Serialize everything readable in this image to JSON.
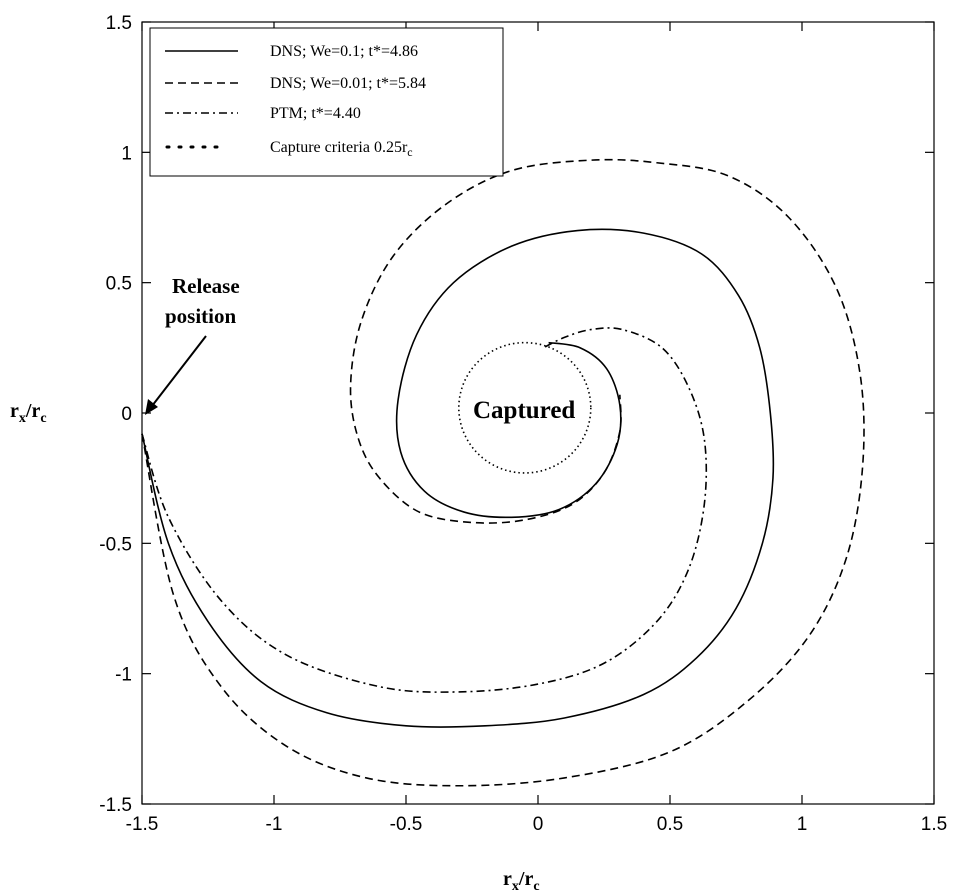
{
  "chart_data": {
    "type": "line",
    "xlabel_main": "r",
    "xlabel_sub": "x",
    "xlabel_denom_main": "r",
    "xlabel_denom_sub": "c",
    "ylabel_main": "r",
    "ylabel_sub": "x",
    "ylabel_denom_main": "r",
    "ylabel_denom_sub": "c",
    "xlim": [
      -1.5,
      1.5
    ],
    "ylim": [
      -1.5,
      1.5
    ],
    "xticks": [
      -1.5,
      -1,
      -0.5,
      0,
      0.5,
      1,
      1.5
    ],
    "xtick_labels": [
      "-1.5",
      "-1",
      "-0.5",
      "0",
      "0.5",
      "1",
      "1.5"
    ],
    "yticks": [
      -1.5,
      -1,
      -0.5,
      0,
      0.5,
      1,
      1.5
    ],
    "ytick_labels": [
      "-1.5",
      "-1",
      "-0.5",
      "0",
      "0.5",
      "1",
      "1.5"
    ],
    "grid": false,
    "legend_position": "top-left",
    "legend": [
      {
        "label": "DNS; We=0.1; t*=4.86",
        "style": "solid"
      },
      {
        "label": "DNS; We=0.01; t*=5.84",
        "style": "dashed"
      },
      {
        "label": "PTM; t*=4.40",
        "style": "dashdot"
      },
      {
        "label_main": "Capture criteria 0.25r",
        "label_sub": "c",
        "style": "dotted"
      }
    ],
    "annotations": {
      "release_line1": "Release",
      "release_line2": "position",
      "captured": "Captured"
    },
    "series": [
      {
        "style": "solid",
        "points": [
          [
            -1.5,
            -0.08
          ],
          [
            -1.4,
            -0.5
          ],
          [
            -1.25,
            -0.8
          ],
          [
            -1.05,
            -1.03
          ],
          [
            -0.8,
            -1.15
          ],
          [
            -0.5,
            -1.2
          ],
          [
            -0.2,
            -1.2
          ],
          [
            0.1,
            -1.17
          ],
          [
            0.4,
            -1.08
          ],
          [
            0.6,
            -0.94
          ],
          [
            0.75,
            -0.75
          ],
          [
            0.85,
            -0.5
          ],
          [
            0.89,
            -0.25
          ],
          [
            0.88,
            0.0
          ],
          [
            0.84,
            0.25
          ],
          [
            0.76,
            0.45
          ],
          [
            0.62,
            0.61
          ],
          [
            0.4,
            0.69
          ],
          [
            0.15,
            0.7
          ],
          [
            -0.1,
            0.64
          ],
          [
            -0.32,
            0.5
          ],
          [
            -0.46,
            0.3
          ],
          [
            -0.53,
            0.05
          ],
          [
            -0.52,
            -0.15
          ],
          [
            -0.43,
            -0.3
          ],
          [
            -0.28,
            -0.38
          ],
          [
            -0.1,
            -0.4
          ],
          [
            0.08,
            -0.37
          ],
          [
            0.22,
            -0.27
          ],
          [
            0.3,
            -0.12
          ],
          [
            0.31,
            0.03
          ],
          [
            0.26,
            0.17
          ],
          [
            0.16,
            0.25
          ],
          [
            0.04,
            0.27
          ]
        ]
      },
      {
        "style": "dashed",
        "points": [
          [
            -1.5,
            -0.08
          ],
          [
            -1.38,
            -0.7
          ],
          [
            -1.2,
            -1.05
          ],
          [
            -0.95,
            -1.28
          ],
          [
            -0.65,
            -1.4
          ],
          [
            -0.3,
            -1.43
          ],
          [
            0.1,
            -1.4
          ],
          [
            0.5,
            -1.3
          ],
          [
            0.8,
            -1.1
          ],
          [
            1.03,
            -0.85
          ],
          [
            1.17,
            -0.55
          ],
          [
            1.23,
            -0.2
          ],
          [
            1.22,
            0.15
          ],
          [
            1.13,
            0.48
          ],
          [
            0.95,
            0.75
          ],
          [
            0.72,
            0.91
          ],
          [
            0.45,
            0.96
          ],
          [
            0.2,
            0.97
          ],
          [
            -0.1,
            0.93
          ],
          [
            -0.35,
            0.8
          ],
          [
            -0.55,
            0.6
          ],
          [
            -0.67,
            0.35
          ],
          [
            -0.71,
            0.1
          ],
          [
            -0.68,
            -0.1
          ],
          [
            -0.6,
            -0.25
          ],
          [
            -0.45,
            -0.38
          ],
          [
            -0.25,
            -0.42
          ],
          [
            -0.05,
            -0.41
          ],
          [
            0.13,
            -0.35
          ],
          [
            0.25,
            -0.23
          ],
          [
            0.31,
            -0.07
          ],
          [
            0.31,
            0.07
          ]
        ]
      },
      {
        "style": "dashdot",
        "points": [
          [
            -1.5,
            -0.08
          ],
          [
            -1.4,
            -0.4
          ],
          [
            -1.2,
            -0.72
          ],
          [
            -0.95,
            -0.93
          ],
          [
            -0.6,
            -1.05
          ],
          [
            -0.3,
            -1.07
          ],
          [
            0.0,
            -1.04
          ],
          [
            0.25,
            -0.96
          ],
          [
            0.45,
            -0.8
          ],
          [
            0.57,
            -0.6
          ],
          [
            0.63,
            -0.35
          ],
          [
            0.63,
            -0.1
          ],
          [
            0.57,
            0.1
          ],
          [
            0.47,
            0.25
          ],
          [
            0.32,
            0.32
          ],
          [
            0.2,
            0.32
          ],
          [
            0.1,
            0.29
          ],
          [
            0.02,
            0.25
          ]
        ]
      },
      {
        "style": "dotted",
        "circle": {
          "cx": -0.05,
          "cy": 0.02,
          "r": 0.25
        }
      }
    ]
  }
}
